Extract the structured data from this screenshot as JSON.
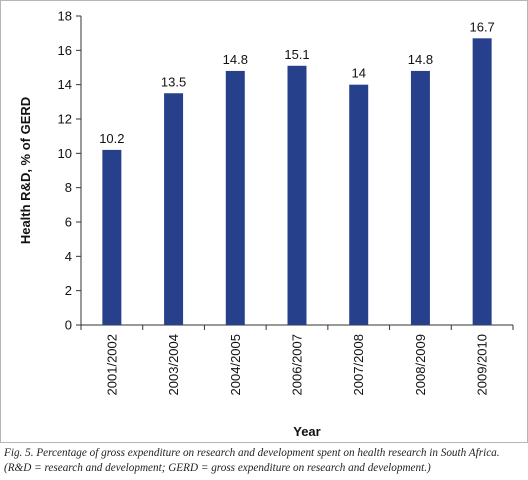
{
  "caption": "Fig. 5. Percentage of gross expenditure on research and development spent on health research in South Africa. (R&D = research and development; GERD = gross expenditure on research and development.)",
  "colors": {
    "bar": "#27408b",
    "axis": "#333333"
  },
  "chart_data": {
    "type": "bar",
    "categories": [
      "2001/2002",
      "2003/2004",
      "2004/2005",
      "2006/2007",
      "2007/2008",
      "2008/2009",
      "2009/2010"
    ],
    "values": [
      10.2,
      13.5,
      14.8,
      15.1,
      14,
      14.8,
      16.7
    ],
    "value_labels": [
      "10.2",
      "13.5",
      "14.8",
      "15.1",
      "14",
      "14.8",
      "16.7"
    ],
    "title": "",
    "xlabel": "Year",
    "ylabel": "Health R&D, % of GERD",
    "ylim": [
      0,
      18
    ],
    "yticks": [
      0,
      2,
      4,
      6,
      8,
      10,
      12,
      14,
      16,
      18
    ],
    "grid": false,
    "legend": "none"
  }
}
